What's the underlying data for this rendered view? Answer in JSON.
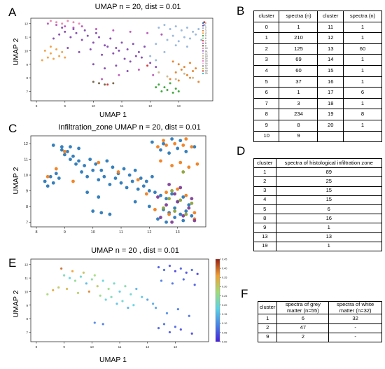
{
  "figure": {
    "panels": {
      "A": {
        "letter": "A",
        "title": "UMAP n = 20, dist = 0.01",
        "xlabel": "UMAP 1",
        "ylabel": "UMAP 2"
      },
      "B": {
        "letter": "B"
      },
      "C": {
        "letter": "C",
        "title": "Infiltration_zone UMAP n = 20, dist = 0.01",
        "xlabel": "",
        "ylabel": "UMAP 2"
      },
      "D": {
        "letter": "D"
      },
      "E": {
        "letter": "E",
        "title": "UMAP n = 20 , dist = 0.01",
        "xlabel": "UMAP 1",
        "ylabel": "UMAP 2"
      },
      "F": {
        "letter": "F"
      }
    }
  },
  "tableB": {
    "headers": [
      "cluster",
      "spectra (n)",
      "cluster",
      "spectra (n)"
    ],
    "rows": [
      [
        "0",
        "1",
        "11",
        "1"
      ],
      [
        "1",
        "210",
        "12",
        "1"
      ],
      [
        "2",
        "125",
        "13",
        "60"
      ],
      [
        "3",
        "69",
        "14",
        "1"
      ],
      [
        "4",
        "60",
        "15",
        "1"
      ],
      [
        "5",
        "37",
        "16",
        "1"
      ],
      [
        "6",
        "1",
        "17",
        "6"
      ],
      [
        "7",
        "3",
        "18",
        "1"
      ],
      [
        "8",
        "234",
        "19",
        "8"
      ],
      [
        "9",
        "8",
        "20",
        "1"
      ],
      [
        "10",
        "9",
        "",
        ""
      ]
    ]
  },
  "tableD": {
    "headers": [
      "cluster",
      "spectra of histological infiltration zone"
    ],
    "rows": [
      [
        "1",
        "89"
      ],
      [
        "2",
        "25"
      ],
      [
        "3",
        "15"
      ],
      [
        "4",
        "15"
      ],
      [
        "5",
        "6"
      ],
      [
        "8",
        "16"
      ],
      [
        "9",
        "1"
      ],
      [
        "13",
        "13"
      ],
      [
        "19",
        "1"
      ]
    ]
  },
  "tableF": {
    "headers": [
      "cluster",
      "spectra of grey matter (n=55)",
      "spectra of white matter (n=32)"
    ],
    "rows": [
      [
        "1",
        "6",
        "32"
      ],
      [
        "2",
        "47",
        "-"
      ],
      [
        "9",
        "2",
        "-"
      ]
    ]
  },
  "chart_data": [
    {
      "id": "A",
      "type": "scatter",
      "title": "UMAP n = 20, dist = 0.01",
      "xlabel": "UMAP 1",
      "ylabel": "UMAP 2",
      "xlim": [
        7.8,
        14.2
      ],
      "ylim": [
        6.3,
        12.4
      ],
      "xticks": [
        "8",
        "9",
        "10",
        "11",
        "12",
        "13"
      ],
      "yticks": [
        "7",
        "8",
        "9",
        "10",
        "11",
        "12"
      ],
      "legend": {
        "placement": "top-right",
        "entries": [
          "0",
          "1",
          "2",
          "3",
          "4",
          "5",
          "6",
          "7",
          "8",
          "9",
          "10",
          "11",
          "12",
          "13",
          "14",
          "15",
          "16",
          "17",
          "18",
          "19",
          "20"
        ]
      },
      "series": [
        {
          "cluster": "1",
          "color": "#7b3fa8",
          "x": [
            8.6,
            8.8,
            9.0,
            9.2,
            9.4,
            9.6,
            9.8,
            10.0,
            10.2,
            10.4,
            10.6,
            10.8,
            11.0,
            11.2,
            11.4,
            11.6,
            11.8,
            9.1,
            9.5,
            9.9,
            10.3,
            10.7,
            11.1,
            11.5,
            8.9,
            9.3,
            9.7,
            10.1,
            10.5,
            10.9,
            11.3,
            11.7,
            12.0,
            12.2,
            10.0,
            10.4,
            10.8,
            11.2
          ],
          "y": [
            10.9,
            11.2,
            11.4,
            11.0,
            11.3,
            10.8,
            11.1,
            10.6,
            11.0,
            10.4,
            10.9,
            10.2,
            10.6,
            10.1,
            10.5,
            9.9,
            10.3,
            10.2,
            9.9,
            10.1,
            9.7,
            9.8,
            9.4,
            9.6,
            11.7,
            11.6,
            11.5,
            11.3,
            10.3,
            10.0,
            9.2,
            9.5,
            9.1,
            8.8,
            9.0,
            8.7,
            8.9,
            8.5
          ]
        },
        {
          "cluster": "2",
          "color": "#8fb3d9",
          "x": [
            12.3,
            12.5,
            12.7,
            12.9,
            13.1,
            13.3,
            13.5,
            13.7,
            12.4,
            12.8,
            13.2,
            13.6,
            12.6,
            13.0,
            13.4,
            13.8,
            12.2,
            13.9,
            12.9,
            13.3,
            12.0,
            12.2,
            12.5
          ],
          "y": [
            11.7,
            11.9,
            11.6,
            11.8,
            11.5,
            11.7,
            11.4,
            11.6,
            11.2,
            11.1,
            11.0,
            11.2,
            10.8,
            10.7,
            10.9,
            10.8,
            10.5,
            11.9,
            10.4,
            10.3,
            9.6,
            9.3,
            9.9
          ]
        },
        {
          "cluster": "3",
          "color": "#e07b20",
          "x": [
            12.8,
            13.0,
            13.2,
            13.4,
            13.6,
            12.9,
            13.1,
            13.3,
            13.5,
            12.7,
            13.0,
            13.4,
            13.7
          ],
          "y": [
            9.2,
            9.0,
            8.8,
            9.1,
            8.7,
            8.4,
            8.6,
            8.2,
            8.5,
            7.9,
            7.8,
            8.0,
            7.7
          ]
        },
        {
          "cluster": "4",
          "color": "#f09a3a",
          "x": [
            8.3,
            8.5,
            8.7,
            8.4,
            8.6,
            8.8,
            8.2,
            8.9,
            9.0,
            8.5
          ],
          "y": [
            10.0,
            9.8,
            10.1,
            9.5,
            9.4,
            9.6,
            9.3,
            9.9,
            9.5,
            10.3
          ]
        },
        {
          "cluster": "5",
          "color": "#2ea02c",
          "x": [
            12.3,
            12.5,
            12.7,
            12.9,
            12.4,
            12.6,
            12.8,
            13.0,
            12.2
          ],
          "y": [
            7.5,
            7.3,
            7.6,
            7.2,
            7.0,
            7.1,
            6.9,
            7.0,
            7.3
          ]
        },
        {
          "cluster": "8",
          "color": "#b54fb3",
          "x": [
            8.4,
            8.7,
            9.0,
            9.3,
            9.6,
            10.1,
            10.7,
            11.3,
            11.9,
            12.4,
            11.6,
            10.9,
            10.3,
            12.1
          ],
          "y": [
            12.0,
            11.9,
            11.8,
            11.7,
            11.8,
            11.6,
            11.5,
            11.4,
            11.3,
            11.2,
            8.6,
            8.2,
            7.9,
            8.2
          ]
        },
        {
          "cluster": "10",
          "color": "#e87ea8",
          "x": [
            8.5,
            8.7,
            8.9,
            9.1,
            9.3,
            9.5
          ],
          "y": [
            12.2,
            12.1,
            12.0,
            12.2,
            12.1,
            12.0
          ]
        },
        {
          "cluster": "9",
          "color": "#6b5a3a",
          "x": [
            10.0,
            10.2,
            10.4,
            10.7
          ],
          "y": [
            7.7,
            7.6,
            7.5,
            7.6
          ]
        },
        {
          "cluster": "13",
          "color": "#c8b48a",
          "x": [
            12.3,
            12.6,
            12.9,
            13.2,
            13.5
          ],
          "y": [
            8.4,
            8.1,
            7.9,
            8.3,
            8.0
          ]
        },
        {
          "cluster": "19",
          "color": "#d62728",
          "x": [
            10.5,
            11.9,
            13.9
          ],
          "y": [
            7.5,
            8.9,
            12.1
          ]
        }
      ]
    },
    {
      "id": "C",
      "type": "scatter",
      "title": "Infiltration_zone UMAP n = 20, dist = 0.01",
      "ylabel": "UMAP 2",
      "xlim": [
        7.8,
        14.0
      ],
      "ylim": [
        6.7,
        12.5
      ],
      "xticks": [
        "8",
        "9",
        "10",
        "11",
        "12",
        "13"
      ],
      "yticks": [
        "7",
        "8",
        "9",
        "10",
        "11",
        "12"
      ],
      "series": [
        {
          "name": "",
          "color": "#2b79b8",
          "x": [
            8.3,
            8.5,
            8.7,
            8.9,
            9.1,
            9.3,
            9.5,
            9.7,
            9.9,
            10.1,
            10.3,
            10.5,
            10.7,
            10.9,
            11.1,
            11.3,
            11.5,
            11.7,
            11.9,
            12.1,
            8.4,
            8.6,
            8.8,
            9.0,
            9.2,
            9.4,
            9.6,
            9.8,
            10.0,
            10.2,
            10.4,
            10.6,
            10.8,
            11.0,
            11.2,
            11.4,
            11.6,
            11.8,
            12.0,
            12.2,
            12.4,
            12.6,
            12.8,
            13.0,
            13.2,
            13.4,
            12.5,
            12.7,
            12.9,
            13.1,
            13.3,
            13.5,
            12.3,
            12.6,
            12.9,
            13.2,
            10.0,
            10.3,
            10.6,
            9.8,
            10.2,
            11.5,
            12.0,
            12.4,
            12.7,
            13.0,
            13.3,
            13.6,
            8.6,
            8.9,
            9.2,
            9.5,
            12.1,
            12.5,
            12.8,
            13.1
          ],
          "y": [
            9.6,
            9.9,
            10.1,
            11.8,
            11.5,
            11.2,
            10.9,
            10.6,
            11.0,
            10.7,
            10.3,
            10.9,
            10.5,
            10.1,
            10.4,
            10.0,
            10.3,
            9.8,
            9.6,
            9.9,
            9.3,
            9.5,
            9.8,
            11.3,
            11.0,
            10.7,
            10.2,
            9.9,
            10.3,
            9.7,
            9.9,
            9.4,
            9.8,
            9.5,
            9.2,
            9.6,
            9.1,
            9.3,
            9.0,
            8.9,
            8.7,
            8.5,
            8.8,
            8.3,
            8.6,
            8.1,
            7.8,
            7.6,
            7.9,
            7.5,
            7.7,
            7.4,
            7.2,
            7.0,
            7.3,
            7.1,
            7.7,
            7.6,
            7.5,
            8.9,
            8.6,
            8.3,
            8.0,
            11.6,
            11.4,
            11.7,
            11.5,
            11.8,
            11.9,
            11.6,
            11.8,
            11.7,
            12.1,
            12.0,
            12.3,
            12.2
          ]
        },
        {
          "name": "",
          "color": "#f07f1e",
          "x": [
            8.4,
            8.7,
            9.0,
            9.3,
            10.2,
            10.9,
            11.6,
            12.3,
            12.6,
            12.9,
            13.2,
            13.5,
            12.4,
            12.8,
            13.1,
            13.4,
            13.7,
            12.6,
            13.0,
            13.3,
            12.2,
            12.7,
            13.6,
            11.9,
            12.5,
            13.3,
            13.6
          ],
          "y": [
            9.9,
            10.4,
            11.5,
            9.6,
            10.8,
            10.2,
            9.7,
            11.8,
            11.9,
            12.0,
            11.9,
            11.8,
            10.9,
            10.6,
            10.8,
            10.5,
            10.7,
            8.9,
            9.1,
            8.7,
            7.8,
            7.5,
            7.6,
            8.8,
            12.2,
            12.3,
            7.2
          ]
        },
        {
          "name": "",
          "color": "#7f3f98",
          "x": [
            12.4,
            12.8,
            13.2,
            13.6,
            12.6,
            13.0,
            13.4,
            12.3,
            12.9,
            13.5,
            12.7,
            13.1
          ],
          "y": [
            7.3,
            7.0,
            7.4,
            7.1,
            8.1,
            8.3,
            7.9,
            8.6,
            8.8,
            8.5,
            9.4,
            9.2
          ]
        },
        {
          "name": "",
          "color": "#8ca23a",
          "x": [
            12.5,
            12.9,
            13.3,
            12.7,
            13.1,
            13.5,
            12.8,
            13.2
          ],
          "y": [
            7.9,
            7.7,
            7.5,
            8.5,
            8.4,
            8.2,
            9.0,
            10.2
          ]
        }
      ]
    },
    {
      "id": "E",
      "type": "scatter",
      "title": "UMAP n = 20 , dist = 0.01",
      "xlabel": "UMAP 1",
      "ylabel": "UMAP 2",
      "xlim": [
        7.8,
        14.2
      ],
      "ylim": [
        6.3,
        12.4
      ],
      "xticks": [
        "8",
        "9",
        "10",
        "11",
        "12",
        "13"
      ],
      "yticks": [
        "7",
        "8",
        "9",
        "10",
        "11",
        "12"
      ],
      "colorbar": {
        "ticks": [
          "0.00",
          "0.05",
          "0.10",
          "0.15",
          "0.20",
          "0.25",
          "0.30",
          "0.35",
          "0.40",
          "0.45"
        ],
        "range": [
          0,
          0.45
        ]
      },
      "series": [
        {
          "name": "",
          "x": [
            8.4,
            8.6,
            8.8,
            9.0,
            9.2,
            9.4,
            9.6,
            9.8,
            10.0,
            10.2,
            10.4,
            10.6,
            10.8,
            11.0,
            11.2,
            11.4,
            11.6,
            11.8,
            12.0,
            12.2,
            12.4,
            12.6,
            12.8,
            13.0,
            13.2,
            13.4,
            13.6,
            13.8,
            12.5,
            12.9,
            13.3,
            13.7,
            12.3,
            12.7,
            13.1,
            13.5,
            9.1,
            9.5,
            9.9,
            10.3,
            10.7,
            11.1,
            11.5,
            8.9,
            9.3,
            9.7,
            10.1,
            10.5,
            10.9,
            11.3,
            10.1,
            10.4,
            12.4,
            12.8,
            13.2,
            13.6,
            12.6,
            13.0
          ],
          "y": [
            9.8,
            10.1,
            10.3,
            11.2,
            11.0,
            10.8,
            11.1,
            10.6,
            10.9,
            10.4,
            10.8,
            10.2,
            10.6,
            10.0,
            10.4,
            9.8,
            10.2,
            9.6,
            9.4,
            9.1,
            11.8,
            11.6,
            11.9,
            11.5,
            11.7,
            11.4,
            11.6,
            11.3,
            10.8,
            10.6,
            10.9,
            10.5,
            8.8,
            8.4,
            8.7,
            8.2,
            10.2,
            9.9,
            10.0,
            9.7,
            9.6,
            9.3,
            9.0,
            11.7,
            11.5,
            11.4,
            11.2,
            9.4,
            9.1,
            8.8,
            7.7,
            7.6,
            7.3,
            7.0,
            7.2,
            6.9,
            7.6,
            7.4
          ],
          "c": [
            0.28,
            0.35,
            0.3,
            0.22,
            0.18,
            0.25,
            0.2,
            0.15,
            0.24,
            0.3,
            0.19,
            0.26,
            0.21,
            0.17,
            0.23,
            0.2,
            0.14,
            0.16,
            0.12,
            0.13,
            0.05,
            0.06,
            0.04,
            0.03,
            0.05,
            0.04,
            0.06,
            0.03,
            0.08,
            0.07,
            0.06,
            0.05,
            0.12,
            0.1,
            0.08,
            0.07,
            0.33,
            0.29,
            0.38,
            0.26,
            0.22,
            0.2,
            0.18,
            0.4,
            0.36,
            0.31,
            0.27,
            0.19,
            0.16,
            0.14,
            0.09,
            0.08,
            0.06,
            0.05,
            0.04,
            0.03,
            0.07,
            0.06
          ]
        }
      ]
    }
  ]
}
